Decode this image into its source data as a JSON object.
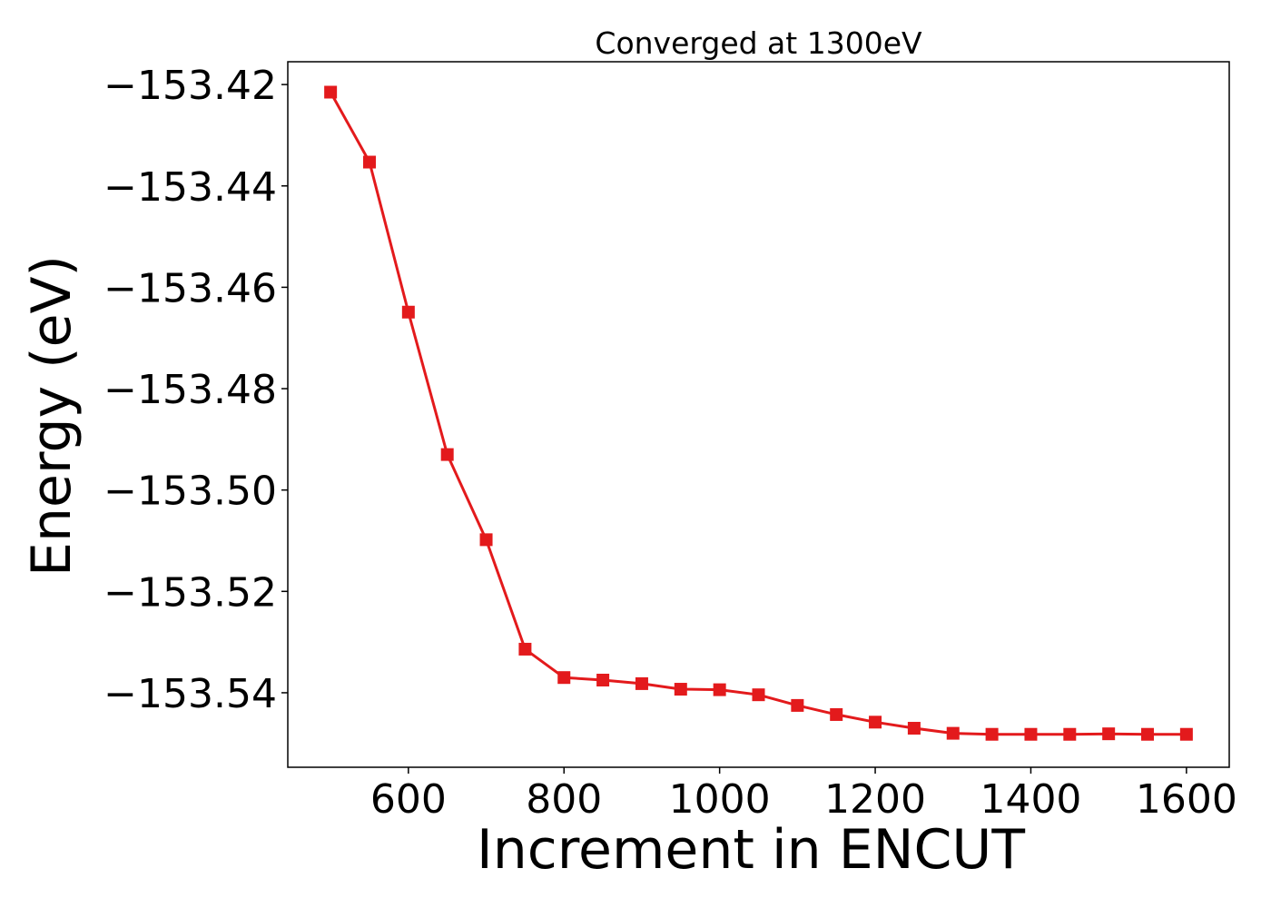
{
  "chart_data": {
    "type": "line",
    "title": "Converged at 1300eV",
    "xlabel": "Increment in ENCUT",
    "ylabel": "Energy (eV)",
    "xlim": [
      445,
      1655
    ],
    "ylim": [
      -153.5547,
      -153.4155
    ],
    "xticks": [
      600,
      800,
      1000,
      1200,
      1400,
      1600
    ],
    "yticks": [
      -153.42,
      -153.44,
      -153.46,
      -153.48,
      -153.5,
      -153.52,
      -153.54
    ],
    "ytick_labels": [
      "−153.42",
      "−153.44",
      "−153.46",
      "−153.48",
      "−153.50",
      "−153.52",
      "−153.54"
    ],
    "grid": false,
    "legend": "none",
    "marker": "square",
    "color": "#e31a1c",
    "series": [
      {
        "x": [
          500,
          550,
          600,
          650,
          700,
          750,
          800,
          850,
          900,
          950,
          1000,
          1050,
          1100,
          1150,
          1200,
          1250,
          1300,
          1350,
          1400,
          1450,
          1500,
          1550,
          1600
        ],
        "y": [
          -153.4215,
          -153.4353,
          -153.4649,
          -153.493,
          -153.5098,
          -153.5314,
          -153.537,
          -153.5375,
          -153.5382,
          -153.5393,
          -153.5394,
          -153.5404,
          -153.5425,
          -153.5443,
          -153.5458,
          -153.547,
          -153.548,
          -153.5482,
          -153.5482,
          -153.5482,
          -153.5481,
          -153.5482,
          -153.5482
        ]
      }
    ]
  }
}
